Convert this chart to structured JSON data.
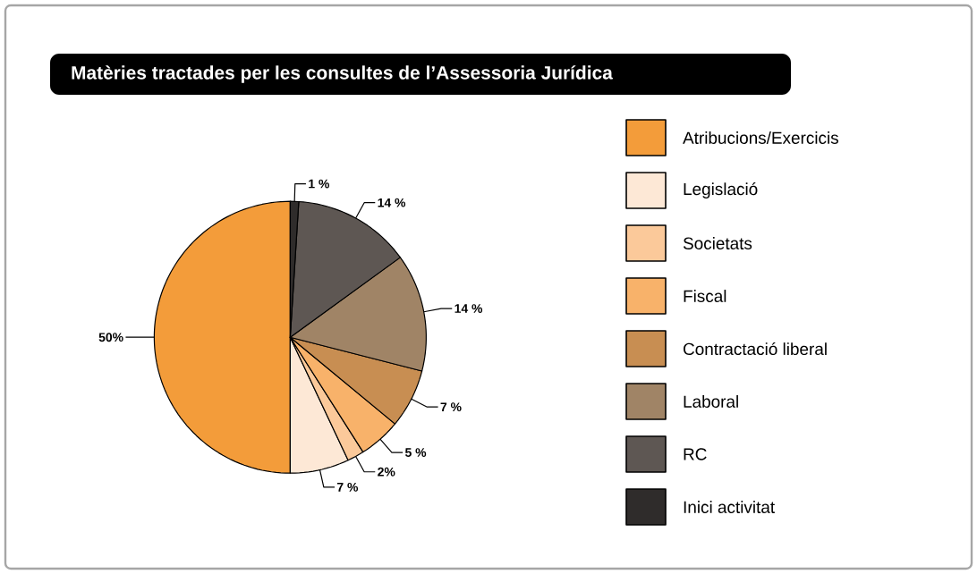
{
  "chart_data": {
    "type": "pie",
    "title": "Matèries tractades per les consultes de l’Assessoria Jurídica",
    "categories": [
      "Atribucions/Exercicis",
      "Legislació",
      "Societats",
      "Fiscal",
      "Contractació liberal",
      "Laboral",
      "RC",
      "Inici activitat"
    ],
    "values": [
      50,
      7,
      2,
      5,
      7,
      14,
      14,
      1
    ],
    "value_labels": [
      "50%",
      "7 %",
      "2%",
      "5 %",
      "7 %",
      "14 %",
      "14 %",
      "1 %"
    ],
    "colors": [
      "#f39c3a",
      "#fde8d6",
      "#fbc99a",
      "#f8b26a",
      "#c88e52",
      "#a08466",
      "#5e5753",
      "#2f2c2b"
    ],
    "legend": "right"
  }
}
